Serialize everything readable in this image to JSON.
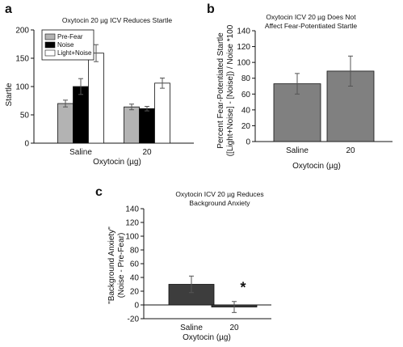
{
  "panels": [
    {
      "letter": "a",
      "chart_data": {
        "type": "bar",
        "title": "Oxytocin 20 µg ICV Reduces Startle",
        "xlabel": "Oxytocin (µg)",
        "ylabel": "Startle",
        "categories": [
          "Saline",
          "20"
        ],
        "series": [
          {
            "name": "Pre-Fear",
            "values": [
              70,
              64
            ],
            "errors": [
              6,
              5
            ],
            "color": "#b3b3b3"
          },
          {
            "name": "Noise",
            "values": [
              100,
              61
            ],
            "errors": [
              14,
              4
            ],
            "color": "#000000"
          },
          {
            "name": "Light+Noise",
            "values": [
              159,
              106
            ],
            "errors": [
              15,
              9
            ],
            "color": "#ffffff"
          }
        ],
        "ylim": [
          0,
          200
        ],
        "yticks": [
          "0",
          "50",
          "100",
          "150",
          "200"
        ],
        "legend": "top-left"
      }
    },
    {
      "letter": "b",
      "chart_data": {
        "type": "bar",
        "title": [
          "Oxytocin ICV 20 µg Does Not",
          "Affect Fear-Potentiated Startle"
        ],
        "xlabel": "Oxytocin (µg)",
        "ylabel": [
          "Percent Fear-Potentiated Startle",
          "([Light+Noise] - [Noise]) / Noise *100"
        ],
        "categories": [
          "Saline",
          "20"
        ],
        "values": [
          73,
          89
        ],
        "errors": [
          13,
          19
        ],
        "color": "#808080",
        "ylim": [
          0,
          140
        ],
        "yticks": [
          "0",
          "20",
          "40",
          "60",
          "80",
          "100",
          "120",
          "140"
        ]
      }
    },
    {
      "letter": "c",
      "chart_data": {
        "type": "bar",
        "title": [
          "Oxytocin ICV 20 µg Reduces",
          "Background Anxiety"
        ],
        "xlabel": "Oxytocin (µg)",
        "ylabel": [
          "\"Background Anxiety\"",
          "(Noise - Pre-Fear)"
        ],
        "categories": [
          "Saline",
          "20"
        ],
        "values": [
          30,
          -3
        ],
        "errors": [
          12,
          8
        ],
        "color": "#3d3d3d",
        "ylim": [
          -20,
          140
        ],
        "yticks": [
          "-20",
          "0",
          "20",
          "40",
          "60",
          "80",
          "100",
          "120",
          "140"
        ],
        "annotations": [
          "*"
        ]
      }
    }
  ]
}
